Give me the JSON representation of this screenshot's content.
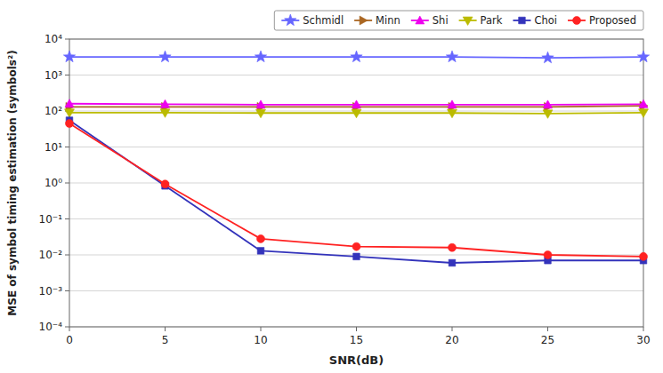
{
  "chart_data": {
    "type": "line",
    "xlabel": "SNR(dB)",
    "ylabel": "MSE of symbol timing estimation (symbols²)",
    "x": [
      0,
      5,
      10,
      15,
      20,
      25,
      30
    ],
    "series": [
      {
        "name": "Schmidl",
        "color": "#6666FF",
        "marker": "star",
        "values": [
          3200,
          3200,
          3200,
          3200,
          3200,
          3000,
          3200
        ]
      },
      {
        "name": "Minn",
        "color": "#AA6622",
        "marker": "triangle-right",
        "values": [
          130,
          130,
          130,
          130,
          130,
          130,
          140
        ]
      },
      {
        "name": "Shi",
        "color": "#EE00EE",
        "marker": "triangle-up",
        "values": [
          160,
          155,
          150,
          150,
          150,
          150,
          155
        ]
      },
      {
        "name": "Park",
        "color": "#BBBB00",
        "marker": "triangle-down",
        "values": [
          90,
          90,
          88,
          88,
          88,
          85,
          90
        ]
      },
      {
        "name": "Choi",
        "color": "#3333BB",
        "marker": "square",
        "values": [
          55,
          0.83,
          0.013,
          0.009,
          0.006,
          0.007,
          0.007
        ]
      },
      {
        "name": "Proposed",
        "color": "#FF2222",
        "marker": "circle",
        "values": [
          45,
          0.93,
          0.028,
          0.017,
          0.016,
          0.01,
          0.009
        ]
      }
    ],
    "xlim": [
      0,
      30
    ],
    "xticks": [
      0,
      5,
      10,
      15,
      20,
      25,
      30
    ],
    "ylim": [
      0.0001,
      10000
    ],
    "yticks": [
      {
        "value": 0.0001,
        "label": "10⁻⁴"
      },
      {
        "value": 0.001,
        "label": "10⁻³"
      },
      {
        "value": 0.01,
        "label": "10⁻²"
      },
      {
        "value": 0.1,
        "label": "10⁻¹"
      },
      {
        "value": 1,
        "label": "10⁰"
      },
      {
        "value": 10,
        "label": "10¹"
      },
      {
        "value": 100,
        "label": "10²"
      },
      {
        "value": 1000,
        "label": "10³"
      },
      {
        "value": 10000,
        "label": "10⁴"
      }
    ],
    "log": "y",
    "grid": true,
    "legend": "upper right"
  }
}
